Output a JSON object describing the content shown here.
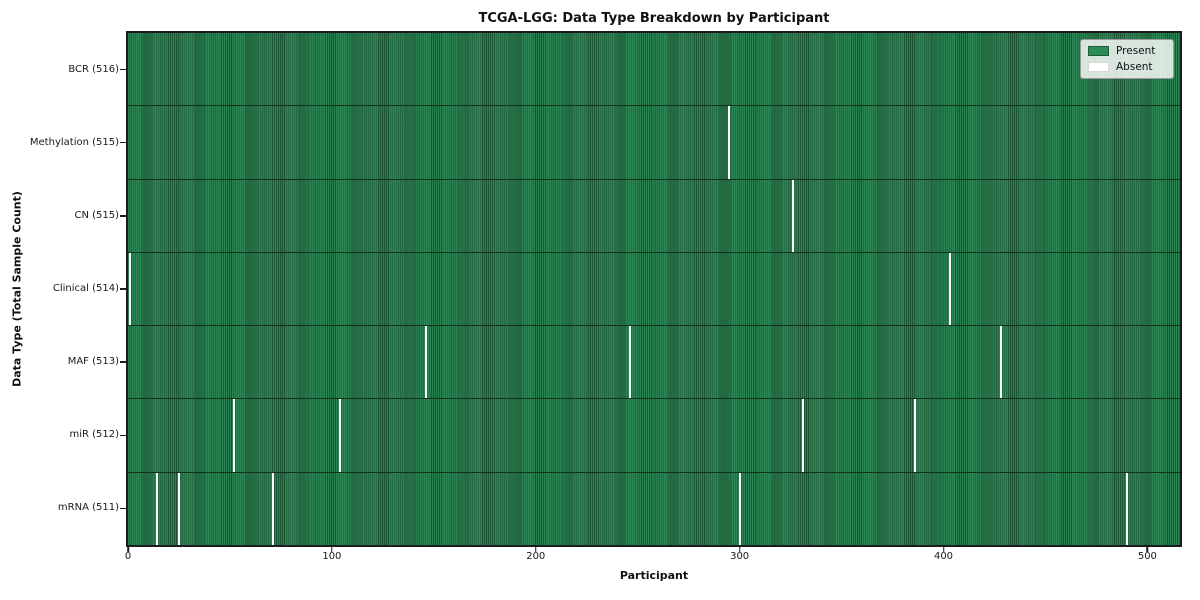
{
  "title": "TCGA-LGG: Data Type Breakdown by Participant",
  "axes": {
    "xlabel": "Participant",
    "ylabel": "Data Type (Total Sample Count)"
  },
  "legend": {
    "present_label": "Present",
    "absent_label": "Absent"
  },
  "colors": {
    "present": "#2e8b57",
    "present_edge": "#1d5c38",
    "absent": "#ffffff",
    "spine": "#1c1c1c"
  },
  "chart_data": {
    "type": "heatmap",
    "title": "TCGA-LGG: Data Type Breakdown by Participant",
    "xlabel": "Participant",
    "ylabel": "Data Type (Total Sample Count)",
    "legend": [
      "Present",
      "Absent"
    ],
    "legend_position": "upper right",
    "grid": false,
    "x_range": [
      0,
      516
    ],
    "x_ticks": [
      0,
      100,
      200,
      300,
      400,
      500
    ],
    "total_participants": 516,
    "rows": [
      {
        "label": "BCR (516)",
        "data_type": "BCR",
        "sample_count": 516,
        "absent_participants": []
      },
      {
        "label": "Methylation (515)",
        "data_type": "Methylation",
        "sample_count": 515,
        "absent_participants": [
          295
        ]
      },
      {
        "label": "CN (515)",
        "data_type": "CN",
        "sample_count": 515,
        "absent_participants": [
          326
        ]
      },
      {
        "label": "Clinical (514)",
        "data_type": "Clinical",
        "sample_count": 514,
        "absent_participants": [
          1,
          403
        ]
      },
      {
        "label": "MAF (513)",
        "data_type": "MAF",
        "sample_count": 513,
        "absent_participants": [
          146,
          246,
          428
        ]
      },
      {
        "label": "miR (512)",
        "data_type": "miR",
        "sample_count": 512,
        "absent_participants": [
          52,
          104,
          331,
          386
        ]
      },
      {
        "label": "mRNA (511)",
        "data_type": "mRNA",
        "sample_count": 511,
        "absent_participants": [
          14,
          25,
          71,
          300,
          490
        ]
      }
    ]
  }
}
